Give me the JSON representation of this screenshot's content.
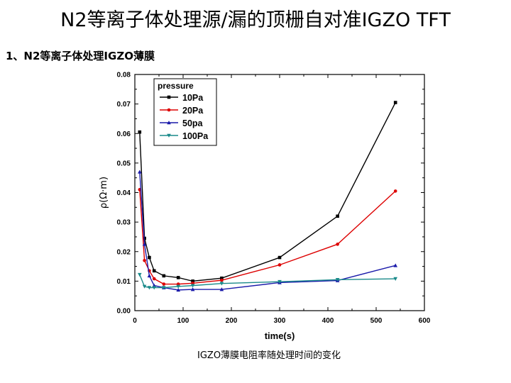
{
  "slide": {
    "title": "N2等离子体处理源/漏的顶栅自对准IGZO TFT",
    "subtitle": "1、N2等离子体处理IGZO薄膜",
    "caption": "IGZO薄膜电阻率随处理时间的变化"
  },
  "chart_data": {
    "type": "line",
    "title": "",
    "xlabel": "time(s)",
    "ylabel": "ρ(Ω·m)",
    "xlim": [
      0,
      600
    ],
    "ylim": [
      0,
      0.08
    ],
    "xticks": [
      "0",
      "100",
      "200",
      "300",
      "400",
      "500",
      "600"
    ],
    "yticks": [
      "0.00",
      "0.01",
      "0.02",
      "0.03",
      "0.04",
      "0.05",
      "0.06",
      "0.07",
      "0.08"
    ],
    "legend_title": "pressure",
    "legend_position": "top-left",
    "series": [
      {
        "name": "10Pa",
        "color": "#000000",
        "marker": "square",
        "x": [
          10,
          20,
          30,
          40,
          60,
          90,
          120,
          180,
          300,
          420,
          540
        ],
        "y": [
          0.0605,
          0.0245,
          0.018,
          0.0135,
          0.0118,
          0.0112,
          0.01,
          0.011,
          0.018,
          0.032,
          0.0705
        ]
      },
      {
        "name": "20Pa",
        "color": "#dd0000",
        "marker": "circle",
        "x": [
          10,
          20,
          30,
          40,
          60,
          90,
          120,
          180,
          300,
          420,
          540
        ],
        "y": [
          0.041,
          0.017,
          0.0135,
          0.0108,
          0.009,
          0.009,
          0.0093,
          0.0103,
          0.0155,
          0.0225,
          0.0405
        ]
      },
      {
        "name": "50pa",
        "color": "#1a1aaa",
        "marker": "triangle",
        "x": [
          10,
          20,
          30,
          40,
          60,
          90,
          120,
          180,
          300,
          420,
          540
        ],
        "y": [
          0.047,
          0.0225,
          0.0118,
          0.0085,
          0.0078,
          0.007,
          0.0072,
          0.0072,
          0.0095,
          0.0102,
          0.0153
        ]
      },
      {
        "name": "100Pa",
        "color": "#1a8a8a",
        "marker": "triangle-down",
        "x": [
          10,
          20,
          30,
          40,
          60,
          90,
          120,
          180,
          300,
          420,
          540
        ],
        "y": [
          0.0122,
          0.0082,
          0.0078,
          0.0078,
          0.0078,
          0.0082,
          0.0085,
          0.0092,
          0.0098,
          0.0105,
          0.0108
        ]
      }
    ]
  }
}
